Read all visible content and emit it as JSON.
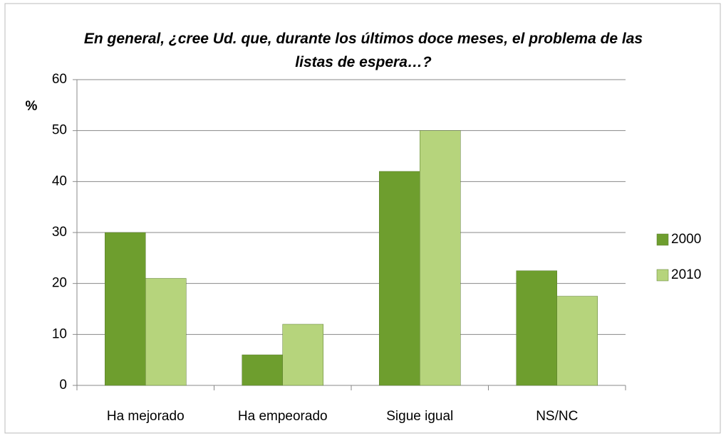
{
  "chart_data": {
    "type": "bar",
    "title": "En general, ¿cree Ud. que, durante los últimos doce meses, el problema de las listas de espera…?",
    "y_label": "%",
    "categories": [
      "Ha mejorado",
      "Ha empeorado",
      "Sigue igual",
      "NS/NC"
    ],
    "series": [
      {
        "name": "2000",
        "color": "#6e9e2e",
        "values": [
          30,
          6,
          42,
          22.5
        ]
      },
      {
        "name": "2010",
        "color": "#b6d47c",
        "values": [
          21,
          12,
          50,
          17.5
        ]
      }
    ],
    "ylim": [
      0,
      60
    ],
    "yticks": [
      0,
      10,
      20,
      30,
      40,
      50,
      60
    ],
    "grid": true,
    "legend": "right"
  }
}
